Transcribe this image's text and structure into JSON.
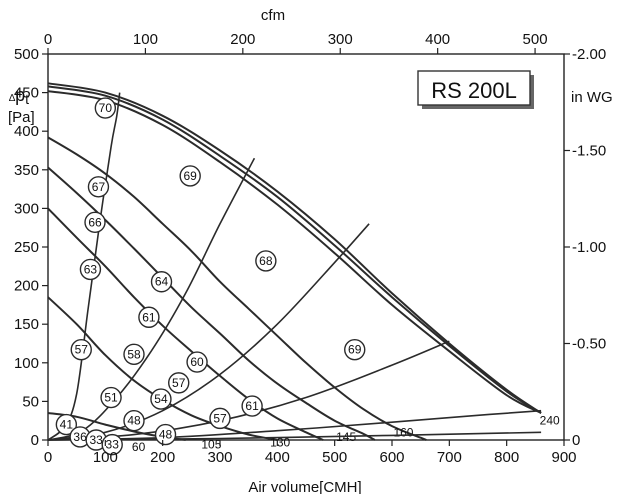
{
  "chart_data": {
    "type": "line",
    "title": "RS 200L",
    "xlabel": "Air volume[CMH]",
    "ylabel": "[Pa]",
    "ylabel_symbol": "Δp",
    "ylabel_symbol_sub": "t",
    "x2label": "cfm",
    "y2label": "in WG",
    "xlim": [
      0,
      900
    ],
    "ylim": [
      0,
      500
    ],
    "x2lim": [
      0,
      529.7
    ],
    "y2lim": [
      0,
      2.0
    ],
    "grid": false,
    "x_ticks": [
      "0",
      "100",
      "200",
      "300",
      "400",
      "500",
      "600",
      "700",
      "800",
      "900"
    ],
    "y_ticks": [
      "0",
      "50",
      "100",
      "150",
      "200",
      "250",
      "300",
      "350",
      "400",
      "450",
      "500"
    ],
    "x2_ticks": [
      "0",
      "100",
      "200",
      "300",
      "400",
      "500"
    ],
    "y2_ticks": [
      "0",
      "0.50",
      "1.00",
      "1.50",
      "2.00"
    ],
    "series": [
      {
        "points": [
          [
            0,
            462
          ],
          [
            100,
            450
          ],
          [
            200,
            420
          ],
          [
            300,
            375
          ],
          [
            400,
            322
          ],
          [
            500,
            260
          ],
          [
            600,
            190
          ],
          [
            700,
            125
          ],
          [
            800,
            65
          ],
          [
            860,
            35
          ]
        ]
      },
      {
        "points": [
          [
            0,
            458
          ],
          [
            100,
            446
          ],
          [
            200,
            415
          ],
          [
            300,
            368
          ],
          [
            400,
            315
          ],
          [
            500,
            252
          ],
          [
            600,
            185
          ],
          [
            700,
            122
          ],
          [
            800,
            63
          ],
          [
            860,
            35
          ]
        ]
      },
      {
        "points": [
          [
            0,
            452
          ],
          [
            100,
            440
          ],
          [
            200,
            408
          ],
          [
            300,
            360
          ],
          [
            400,
            305
          ],
          [
            500,
            242
          ],
          [
            600,
            175
          ],
          [
            700,
            115
          ],
          [
            800,
            58
          ],
          [
            860,
            35
          ]
        ]
      },
      {
        "points": [
          [
            0,
            392
          ],
          [
            50,
            370
          ],
          [
            100,
            345
          ],
          [
            150,
            315
          ],
          [
            200,
            280
          ],
          [
            250,
            245
          ],
          [
            300,
            205
          ],
          [
            350,
            170
          ],
          [
            400,
            135
          ],
          [
            450,
            100
          ],
          [
            500,
            68
          ],
          [
            550,
            40
          ],
          [
            600,
            18
          ],
          [
            650,
            3
          ],
          [
            660,
            0
          ]
        ]
      },
      {
        "points": [
          [
            0,
            353
          ],
          [
            50,
            320
          ],
          [
            100,
            285
          ],
          [
            150,
            248
          ],
          [
            200,
            210
          ],
          [
            250,
            172
          ],
          [
            300,
            138
          ],
          [
            350,
            103
          ],
          [
            400,
            73
          ],
          [
            450,
            48
          ],
          [
            500,
            25
          ],
          [
            550,
            8
          ],
          [
            570,
            0
          ]
        ]
      },
      {
        "points": [
          [
            0,
            300
          ],
          [
            50,
            262
          ],
          [
            100,
            225
          ],
          [
            150,
            185
          ],
          [
            200,
            148
          ],
          [
            250,
            115
          ],
          [
            300,
            83
          ],
          [
            350,
            53
          ],
          [
            400,
            28
          ],
          [
            450,
            10
          ],
          [
            480,
            0
          ]
        ]
      },
      {
        "points": [
          [
            0,
            185
          ],
          [
            50,
            150
          ],
          [
            100,
            110
          ],
          [
            150,
            77
          ],
          [
            200,
            52
          ],
          [
            250,
            32
          ],
          [
            300,
            18
          ],
          [
            350,
            7
          ],
          [
            400,
            0
          ]
        ]
      },
      {
        "points": [
          [
            0,
            35
          ],
          [
            50,
            30
          ],
          [
            100,
            20
          ],
          [
            150,
            11
          ],
          [
            200,
            4
          ],
          [
            240,
            0
          ]
        ]
      }
    ],
    "system_curves": [
      {
        "label": "240",
        "points": [
          [
            0,
            0
          ],
          [
            30,
            18
          ],
          [
            50,
            60
          ],
          [
            70,
            170
          ],
          [
            90,
            280
          ],
          [
            110,
            380
          ],
          [
            120,
            420
          ],
          [
            125,
            450
          ]
        ]
      },
      {
        "label": "160",
        "points": [
          [
            0,
            0
          ],
          [
            60,
            12
          ],
          [
            120,
            55
          ],
          [
            180,
            115
          ],
          [
            240,
            190
          ],
          [
            300,
            280
          ],
          [
            360,
            365
          ]
        ]
      },
      {
        "label": "145",
        "points": [
          [
            0,
            0
          ],
          [
            100,
            10
          ],
          [
            200,
            38
          ],
          [
            300,
            85
          ],
          [
            400,
            150
          ],
          [
            500,
            230
          ],
          [
            560,
            280
          ]
        ]
      },
      {
        "label": "130",
        "points": [
          [
            0,
            0
          ],
          [
            150,
            7
          ],
          [
            300,
            25
          ],
          [
            450,
            55
          ],
          [
            600,
            97
          ],
          [
            700,
            128
          ]
        ]
      },
      {
        "label": "105",
        "points": [
          [
            0,
            0
          ],
          [
            200,
            3
          ],
          [
            400,
            12
          ],
          [
            600,
            23
          ],
          [
            750,
            32
          ],
          [
            860,
            38
          ]
        ]
      },
      {
        "label": "60",
        "points": [
          [
            0,
            0
          ],
          [
            300,
            2
          ],
          [
            600,
            6
          ],
          [
            860,
            10
          ]
        ]
      }
    ],
    "efficiency_markers": [
      {
        "label": "70",
        "x": 100,
        "y": 430
      },
      {
        "label": "67",
        "x": 88,
        "y": 328
      },
      {
        "label": "66",
        "x": 82,
        "y": 282
      },
      {
        "label": "63",
        "x": 74,
        "y": 221
      },
      {
        "label": "57",
        "x": 58,
        "y": 117
      },
      {
        "label": "41",
        "x": 32,
        "y": 20
      },
      {
        "label": "36",
        "x": 56,
        "y": 4
      },
      {
        "label": "33",
        "x": 84,
        "y": 0
      },
      {
        "label": "33",
        "x": 112,
        "y": -6
      },
      {
        "label": "51",
        "x": 110,
        "y": 55
      },
      {
        "label": "58",
        "x": 150,
        "y": 111
      },
      {
        "label": "48",
        "x": 150,
        "y": 25
      },
      {
        "label": "64",
        "x": 198,
        "y": 205
      },
      {
        "label": "61",
        "x": 176,
        "y": 159
      },
      {
        "label": "54",
        "x": 197,
        "y": 53
      },
      {
        "label": "48",
        "x": 205,
        "y": 7
      },
      {
        "label": "69",
        "x": 248,
        "y": 342
      },
      {
        "label": "57",
        "x": 228,
        "y": 74
      },
      {
        "label": "60",
        "x": 260,
        "y": 101
      },
      {
        "label": "57",
        "x": 300,
        "y": 28
      },
      {
        "label": "68",
        "x": 380,
        "y": 232
      },
      {
        "label": "61",
        "x": 356,
        "y": 44
      },
      {
        "label": "69",
        "x": 535,
        "y": 117
      }
    ]
  }
}
